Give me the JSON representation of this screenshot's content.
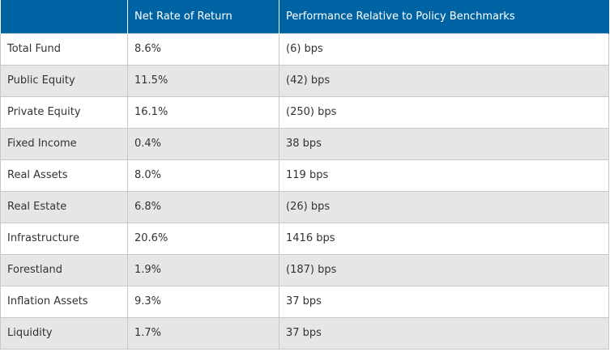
{
  "table": {
    "headers": [
      "",
      "Net Rate of Return",
      "Performance Relative to Policy Benchmarks"
    ],
    "rows": [
      {
        "asset": "Total Fund",
        "net_return": "8.6%",
        "relative": "(6) bps"
      },
      {
        "asset": "Public Equity",
        "net_return": "11.5%",
        "relative": "(42) bps"
      },
      {
        "asset": "Private Equity",
        "net_return": "16.1%",
        "relative": "(250) bps"
      },
      {
        "asset": "Fixed Income",
        "net_return": "0.4%",
        "relative": "38 bps"
      },
      {
        "asset": "Real Assets",
        "net_return": "8.0%",
        "relative": "119 bps"
      },
      {
        "asset": "Real Estate",
        "net_return": "6.8%",
        "relative": "(26) bps"
      },
      {
        "asset": "Infrastructure",
        "net_return": "20.6%",
        "relative": "1416 bps"
      },
      {
        "asset": "Forestland",
        "net_return": "1.9%",
        "relative": "(187) bps"
      },
      {
        "asset": "Inflation Assets",
        "net_return": "9.3%",
        "relative": "37 bps"
      },
      {
        "asset": "Liquidity",
        "net_return": "1.7%",
        "relative": "37 bps"
      }
    ]
  },
  "colors": {
    "header_bg": "#0064a4",
    "header_text": "#ffffff",
    "row_alt_bg": "#e6e6e6",
    "border": "#c8c8c8"
  }
}
